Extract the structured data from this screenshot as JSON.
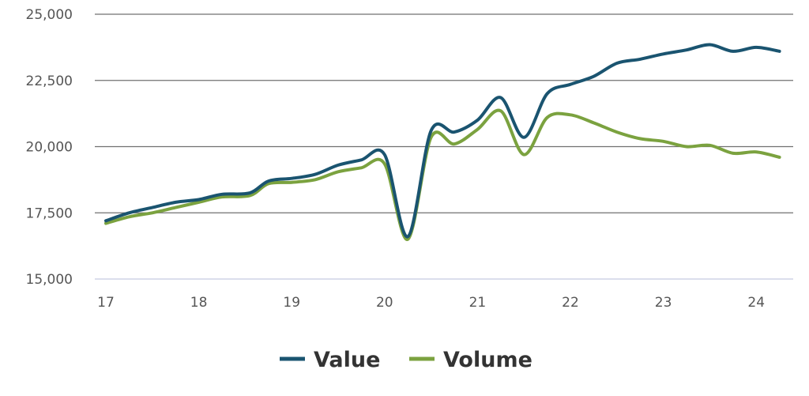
{
  "chart_data": {
    "type": "line",
    "title": "",
    "xlabel": "",
    "ylabel": "",
    "ylim": [
      15000,
      25000
    ],
    "xlim": [
      17,
      24.4
    ],
    "y_ticks": [
      15000,
      17500,
      20000,
      22500,
      25000
    ],
    "y_tick_labels": [
      "15,000",
      "17,500",
      "20,000",
      "22,500",
      "25,000"
    ],
    "x_ticks": [
      17,
      18,
      19,
      20,
      21,
      22,
      23,
      24
    ],
    "x_tick_labels": [
      "17",
      "18",
      "19",
      "20",
      "21",
      "22",
      "23",
      "24"
    ],
    "grid": "horizontal",
    "legend_position": "bottom-center",
    "series": [
      {
        "name": "Value",
        "color": "#1a5470",
        "x": [
          17.0,
          17.25,
          17.5,
          17.75,
          18.0,
          18.25,
          18.55,
          18.75,
          19.0,
          19.25,
          19.5,
          19.75,
          20.0,
          20.25,
          20.5,
          20.75,
          21.0,
          21.25,
          21.5,
          21.75,
          22.0,
          22.25,
          22.5,
          22.75,
          23.0,
          23.25,
          23.5,
          23.75,
          24.0,
          24.25
        ],
        "y": [
          17200,
          17500,
          17700,
          17900,
          18000,
          18200,
          18250,
          18700,
          18800,
          18950,
          19300,
          19500,
          19700,
          16600,
          20600,
          20550,
          21000,
          21850,
          20350,
          22000,
          22350,
          22650,
          23150,
          23300,
          23500,
          23650,
          23850,
          23600,
          23750,
          23600
        ]
      },
      {
        "name": "Volume",
        "color": "#7ba23f",
        "x": [
          17.0,
          17.25,
          17.5,
          17.75,
          18.0,
          18.25,
          18.55,
          18.75,
          19.0,
          19.25,
          19.5,
          19.75,
          20.0,
          20.25,
          20.5,
          20.75,
          21.0,
          21.25,
          21.5,
          21.75,
          22.0,
          22.25,
          22.5,
          22.75,
          23.0,
          23.25,
          23.5,
          23.75,
          24.0,
          24.25
        ],
        "y": [
          17100,
          17350,
          17500,
          17700,
          17900,
          18100,
          18150,
          18600,
          18650,
          18750,
          19050,
          19200,
          19350,
          16500,
          20350,
          20100,
          20650,
          21350,
          19700,
          21100,
          21200,
          20900,
          20550,
          20300,
          20200,
          20000,
          20050,
          19750,
          19800,
          19600
        ]
      }
    ]
  }
}
